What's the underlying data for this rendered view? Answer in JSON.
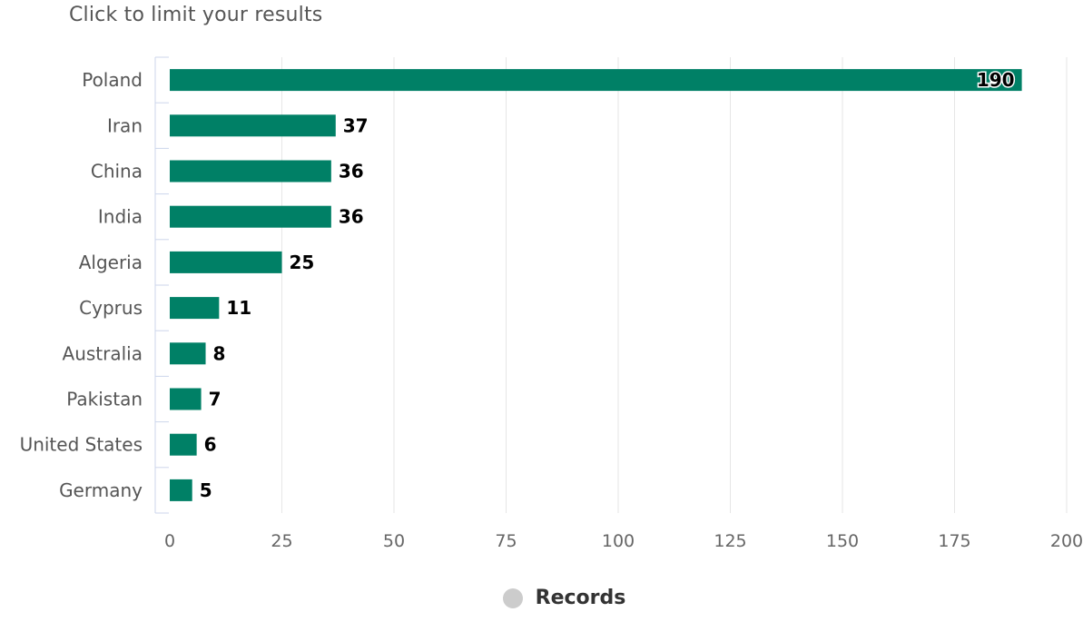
{
  "subtitle": "Click to limit your results",
  "legend": {
    "label": "Records",
    "color": "#cccccc"
  },
  "chart_data": {
    "type": "bar",
    "orientation": "horizontal",
    "categories": [
      "Poland",
      "Iran",
      "China",
      "India",
      "Algeria",
      "Cyprus",
      "Australia",
      "Pakistan",
      "United States",
      "Germany"
    ],
    "series": [
      {
        "name": "Records",
        "values": [
          190,
          37,
          36,
          36,
          25,
          11,
          8,
          7,
          6,
          5
        ]
      }
    ],
    "xlim": [
      0,
      200
    ],
    "xticks": [
      0,
      25,
      50,
      75,
      100,
      125,
      150,
      175,
      200
    ],
    "grid": true,
    "legend_position": "bottom",
    "bar_color": "#008066",
    "title": "",
    "xlabel": "",
    "ylabel": ""
  }
}
